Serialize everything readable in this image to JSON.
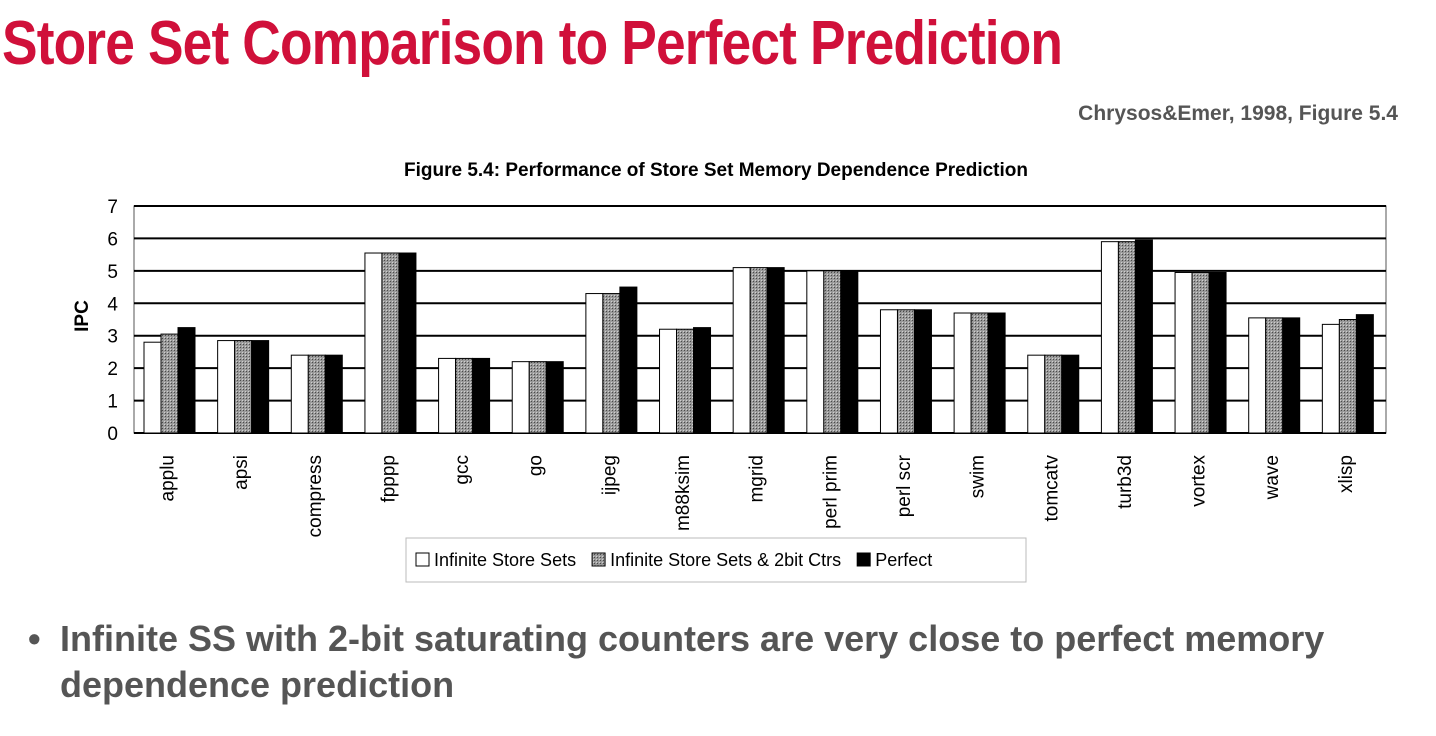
{
  "slide": {
    "title": "Store Set Comparison to Perfect Prediction",
    "citation": "Chrysos&Emer, 1998, Figure 5.4",
    "bullet": "Infinite SS with 2-bit saturating counters are very close to perfect memory dependence prediction",
    "bullet_marker": "•"
  },
  "colors": {
    "title": "#d0103a",
    "text": "#555555",
    "series": [
      "#ffffff",
      "#8a8a8a",
      "#000000"
    ]
  },
  "chart_data": {
    "type": "bar",
    "title": "Figure 5.4: Performance of Store Set Memory Dependence Prediction",
    "xlabel": "",
    "ylabel": "IPC",
    "ylim": [
      0,
      7
    ],
    "yticks": [
      0,
      1,
      2,
      3,
      4,
      5,
      6,
      7
    ],
    "grid": true,
    "legend": "bottom",
    "categories": [
      "applu",
      "apsi",
      "compress",
      "fpppp",
      "gcc",
      "go",
      "ijpeg",
      "m88ksim",
      "mgrid",
      "perl prim",
      "perl scr",
      "swim",
      "tomcatv",
      "turb3d",
      "vortex",
      "wave",
      "xlisp"
    ],
    "series": [
      {
        "name": "Infinite Store Sets",
        "values": [
          2.8,
          2.85,
          2.4,
          5.55,
          2.3,
          2.2,
          4.3,
          3.2,
          5.1,
          5.0,
          3.8,
          3.7,
          2.4,
          5.9,
          4.95,
          3.55,
          3.35
        ]
      },
      {
        "name": "Infinite Store Sets & 2bit Ctrs",
        "values": [
          3.05,
          2.85,
          2.4,
          5.55,
          2.3,
          2.2,
          4.3,
          3.2,
          5.1,
          5.0,
          3.8,
          3.7,
          2.4,
          5.9,
          4.95,
          3.55,
          3.5
        ]
      },
      {
        "name": "Perfect",
        "values": [
          3.25,
          2.85,
          2.4,
          5.55,
          2.3,
          2.2,
          4.5,
          3.25,
          5.1,
          5.0,
          3.8,
          3.7,
          2.4,
          5.95,
          4.95,
          3.55,
          3.65
        ]
      }
    ]
  }
}
